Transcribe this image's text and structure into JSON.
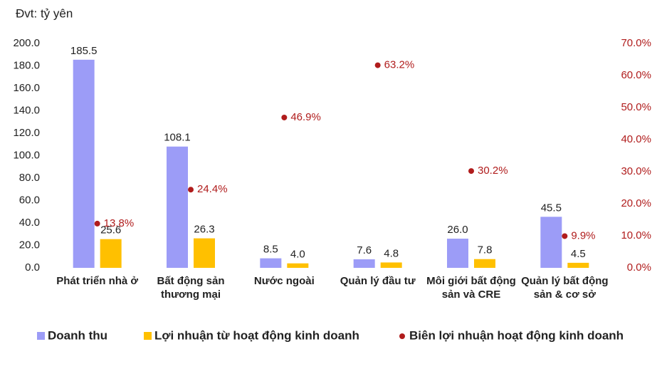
{
  "chart_data": {
    "type": "bar",
    "unit_label": "Đvt: tỷ yên",
    "categories": [
      [
        "Phát triển nhà ở"
      ],
      [
        "Bất động sản",
        "thương mại"
      ],
      [
        "Nước ngoài"
      ],
      [
        "Quản lý đầu tư"
      ],
      [
        "Môi giới bất động",
        "sản và CRE"
      ],
      [
        "Quản lý bất động",
        "sản & cơ sở"
      ]
    ],
    "series": [
      {
        "name": "Doanh thu",
        "color": "#9c9cf7",
        "values": [
          185.5,
          108.1,
          8.5,
          7.6,
          26.0,
          45.5
        ],
        "value_labels": [
          "185.5",
          "108.1",
          "8.5",
          "7.6",
          "26.0",
          "45.5"
        ]
      },
      {
        "name": "Lợi nhuận từ hoạt động kinh doanh",
        "color": "#ffc000",
        "values": [
          25.6,
          26.3,
          4.0,
          4.8,
          7.8,
          4.5
        ],
        "value_labels": [
          "25.6",
          "26.3",
          "4.0",
          "4.8",
          "7.8",
          "4.5"
        ]
      },
      {
        "name": "Biên lợi nhuận hoạt động kinh doanh",
        "color": "#b01c1c",
        "axis": "y2",
        "type": "scatter",
        "values": [
          13.8,
          24.4,
          46.9,
          63.2,
          30.2,
          9.9
        ],
        "value_labels": [
          "13.8%",
          "24.4%",
          "46.9%",
          "63.2%",
          "30.2%",
          "9.9%"
        ]
      }
    ],
    "ylim": [
      0,
      200
    ],
    "yticks": [
      {
        "value": 0,
        "label": "0.0"
      },
      {
        "value": 20,
        "label": "20.0"
      },
      {
        "value": 40,
        "label": "40.0"
      },
      {
        "value": 60,
        "label": "60.0"
      },
      {
        "value": 80,
        "label": "80.0"
      },
      {
        "value": 100,
        "label": "100.0"
      },
      {
        "value": 120,
        "label": "120.0"
      },
      {
        "value": 140,
        "label": "140.0"
      },
      {
        "value": 160,
        "label": "160.0"
      },
      {
        "value": 180,
        "label": "180.0"
      },
      {
        "value": 200,
        "label": "200.0"
      }
    ],
    "y2lim": [
      0,
      70
    ],
    "y2ticks": [
      {
        "value": 0,
        "label": "0.0%"
      },
      {
        "value": 10,
        "label": "10.0%"
      },
      {
        "value": 20,
        "label": "20.0%"
      },
      {
        "value": 30,
        "label": "30.0%"
      },
      {
        "value": 40,
        "label": "40.0%"
      },
      {
        "value": 50,
        "label": "50.0%"
      },
      {
        "value": 60,
        "label": "60.0%"
      },
      {
        "value": 70,
        "label": "70.0%"
      }
    ],
    "grid": false
  }
}
